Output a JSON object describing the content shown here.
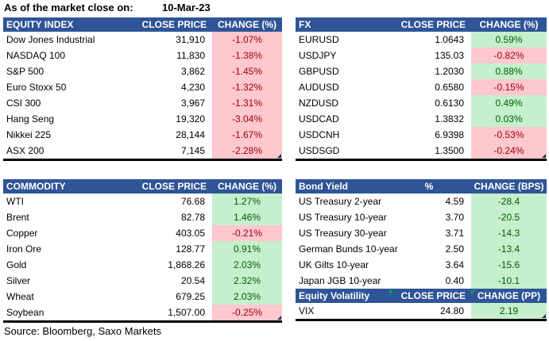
{
  "meta": {
    "as_of_label": "As of the market close on:",
    "date": "10-Mar-23",
    "source": "Source: Bloomberg, Saxo Markets"
  },
  "colors": {
    "header_bg": "#2F5597",
    "positive_bg": "#C6EFCE",
    "positive_text": "#006100",
    "negative_bg": "#FFC7CE",
    "negative_text": "#9C0006"
  },
  "tables": {
    "equity_index": {
      "title": "EQUITY INDEX",
      "price_header": "CLOSE PRICE",
      "change_header": "CHANGE (%)",
      "rows": [
        {
          "name": "Dow Jones Industrial",
          "value": "31,910",
          "change": "-1.07%",
          "tone": "red"
        },
        {
          "name": "NASDAQ 100",
          "value": "11,830",
          "change": "-1.38%",
          "tone": "red"
        },
        {
          "name": "S&P 500",
          "value": "3,862",
          "change": "-1.45%",
          "tone": "red"
        },
        {
          "name": "Euro Stoxx 50",
          "value": "4,230",
          "change": "-1.32%",
          "tone": "red"
        },
        {
          "name": "CSI 300",
          "value": "3,967",
          "change": "-1.31%",
          "tone": "red"
        },
        {
          "name": "Hang Seng",
          "value": "19,320",
          "change": "-3.04%",
          "tone": "red"
        },
        {
          "name": "Nikkei 225",
          "value": "28,144",
          "change": "-1.67%",
          "tone": "red"
        },
        {
          "name": "ASX 200",
          "value": "7,145",
          "change": "-2.28%",
          "tone": "red"
        }
      ]
    },
    "fx": {
      "title": "FX",
      "price_header": "CLOSE PRICE",
      "change_header": "CHANGE (%)",
      "rows": [
        {
          "name": "EURUSD",
          "value": "1.0643",
          "change": "0.59%",
          "tone": "green"
        },
        {
          "name": "USDJPY",
          "value": "135.03",
          "change": "-0.82%",
          "tone": "red"
        },
        {
          "name": "GBPUSD",
          "value": "1.2030",
          "change": "0.88%",
          "tone": "green"
        },
        {
          "name": "AUDUSD",
          "value": "0.6580",
          "change": "-0.15%",
          "tone": "red"
        },
        {
          "name": "NZDUSD",
          "value": "0.6130",
          "change": "0.49%",
          "tone": "green"
        },
        {
          "name": "USDCAD",
          "value": "1.3832",
          "change": "0.03%",
          "tone": "green"
        },
        {
          "name": "USDCNH",
          "value": "6.9398",
          "change": "-0.53%",
          "tone": "red"
        },
        {
          "name": "USDSGD",
          "value": "1.3500",
          "change": "-0.24%",
          "tone": "red"
        }
      ]
    },
    "commodity": {
      "title": "COMMODITY",
      "price_header": "CLOSE PRICE",
      "change_header": "CHANGE (%)",
      "rows": [
        {
          "name": "WTI",
          "value": "76.68",
          "change": "1.27%",
          "tone": "green"
        },
        {
          "name": "Brent",
          "value": "82.78",
          "change": "1.46%",
          "tone": "green"
        },
        {
          "name": "Copper",
          "value": "403.05",
          "change": "-0.21%",
          "tone": "red"
        },
        {
          "name": "Iron Ore",
          "value": "128.77",
          "change": "0.91%",
          "tone": "green"
        },
        {
          "name": "Gold",
          "value": "1,868.26",
          "change": "2.03%",
          "tone": "green"
        },
        {
          "name": "Silver",
          "value": "20.54",
          "change": "2.32%",
          "tone": "green"
        },
        {
          "name": "Wheat",
          "value": "679.25",
          "change": "2.03%",
          "tone": "green"
        },
        {
          "name": "Soybean",
          "value": "1,507.00",
          "change": "-0.25%",
          "tone": "red"
        }
      ]
    },
    "bond_yield": {
      "title": "Bond Yield",
      "price_header": "%",
      "change_header": "CHANGE (BPS)",
      "rows": [
        {
          "name": "US Treasury 2-year",
          "value": "4.59",
          "change": "-28.4",
          "tone": "green"
        },
        {
          "name": "US Treasury 10-year",
          "value": "3.70",
          "change": "-20.5",
          "tone": "green"
        },
        {
          "name": "US Treasury 30-year",
          "value": "3.71",
          "change": "-14.3",
          "tone": "green"
        },
        {
          "name": "German Bunds 10-year",
          "value": "2.50",
          "change": "-13.4",
          "tone": "green"
        },
        {
          "name": "UK Gilts 10-year",
          "value": "3.64",
          "change": "-15.6",
          "tone": "green"
        },
        {
          "name": "Japan JGB 10-year",
          "value": "0.40",
          "change": "-10.1",
          "tone": "green"
        }
      ]
    },
    "equity_volatility": {
      "title": "Equity Volatility",
      "price_header": "CLOSE PRICE",
      "change_header": "CHANGE (PP)",
      "rows": [
        {
          "name": "VIX",
          "value": "24.80",
          "change": "2.19",
          "tone": "green"
        }
      ]
    }
  }
}
